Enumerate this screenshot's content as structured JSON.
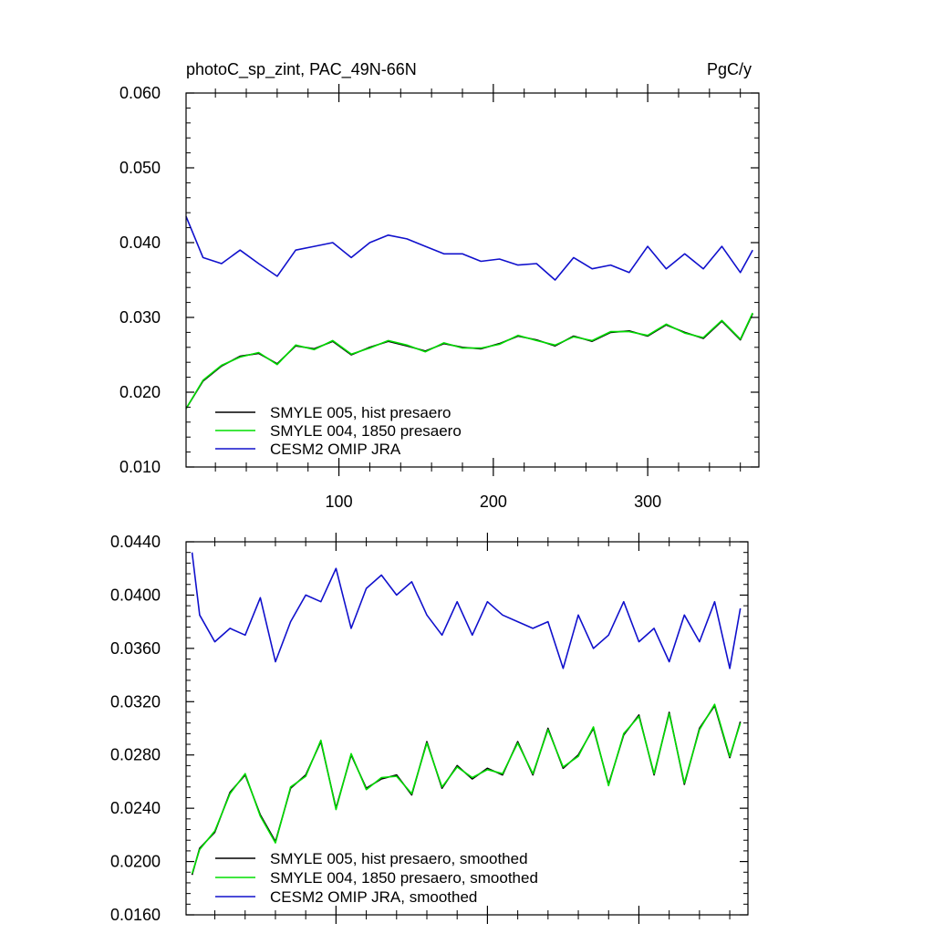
{
  "header": {
    "left_title": "photoC_sp_zint, PAC_49N-66N",
    "right_title": "PgC/y"
  },
  "colors": {
    "hist": "#000000",
    "p1850": "#00dd00",
    "omip": "#1010cc"
  },
  "chart_data": [
    {
      "type": "line",
      "title": "photoC_sp_zint, PAC_49N-66N",
      "units": "PgC/y",
      "xlim": [
        1,
        372
      ],
      "ylim": [
        0.01,
        0.06
      ],
      "x_ticks": [
        100,
        200,
        300
      ],
      "y_ticks": [
        "0.010",
        "0.020",
        "0.030",
        "0.040",
        "0.050",
        "0.060"
      ],
      "legend": {
        "position": "bottom-left",
        "entries": [
          "SMYLE 005, hist presaero",
          "SMYLE 004, 1850 presaero",
          "CESM2 OMIP JRA"
        ]
      },
      "series": [
        {
          "name": "SMYLE 005, hist presaero",
          "color": "#000000",
          "x": [
            1,
            12,
            24,
            36,
            48,
            60,
            72,
            84,
            96,
            108,
            120,
            132,
            144,
            156,
            168,
            180,
            192,
            204,
            216,
            228,
            240,
            252,
            264,
            276,
            288,
            300,
            312,
            324,
            336,
            348,
            360,
            368
          ],
          "y": [
            0.0178,
            0.0215,
            0.0235,
            0.0248,
            0.0252,
            0.0238,
            0.0262,
            0.0258,
            0.0268,
            0.025,
            0.026,
            0.0268,
            0.0262,
            0.0255,
            0.0265,
            0.026,
            0.0258,
            0.0265,
            0.0275,
            0.027,
            0.0262,
            0.0275,
            0.0268,
            0.028,
            0.0282,
            0.0275,
            0.029,
            0.028,
            0.0272,
            0.0295,
            0.027,
            0.0305
          ]
        },
        {
          "name": "SMYLE 004, 1850 presaero",
          "color": "#00dd00",
          "x": [
            1,
            12,
            24,
            36,
            48,
            60,
            72,
            84,
            96,
            108,
            120,
            132,
            144,
            156,
            168,
            180,
            192,
            204,
            216,
            228,
            240,
            252,
            264,
            276,
            288,
            300,
            312,
            324,
            336,
            348,
            360,
            368
          ],
          "y": [
            0.0178,
            0.0216,
            0.0236,
            0.0247,
            0.0253,
            0.0237,
            0.0263,
            0.0257,
            0.0269,
            0.0251,
            0.0259,
            0.0269,
            0.0263,
            0.0254,
            0.0266,
            0.0259,
            0.0259,
            0.0264,
            0.0276,
            0.0269,
            0.0263,
            0.0274,
            0.0269,
            0.0281,
            0.0281,
            0.0276,
            0.0291,
            0.0279,
            0.0273,
            0.0296,
            0.0271,
            0.0306
          ]
        },
        {
          "name": "CESM2 OMIP JRA",
          "color": "#1010cc",
          "x": [
            1,
            12,
            24,
            36,
            48,
            60,
            72,
            84,
            96,
            108,
            120,
            132,
            144,
            156,
            168,
            180,
            192,
            204,
            216,
            228,
            240,
            252,
            264,
            276,
            288,
            300,
            312,
            324,
            336,
            348,
            360,
            368
          ],
          "y": [
            0.0435,
            0.038,
            0.0372,
            0.039,
            0.0372,
            0.0355,
            0.039,
            0.0395,
            0.04,
            0.038,
            0.04,
            0.041,
            0.0405,
            0.0395,
            0.0385,
            0.0385,
            0.0375,
            0.0378,
            0.037,
            0.0372,
            0.035,
            0.038,
            0.0365,
            0.037,
            0.036,
            0.0395,
            0.0365,
            0.0385,
            0.0365,
            0.0395,
            0.036,
            0.039
          ]
        }
      ]
    },
    {
      "type": "line",
      "xlim": [
        1,
        372
      ],
      "ylim": [
        0.016,
        0.044
      ],
      "x_ticks": [
        100,
        200,
        300
      ],
      "y_ticks": [
        "0.0160",
        "0.0200",
        "0.0240",
        "0.0280",
        "0.0320",
        "0.0360",
        "0.0400",
        "0.0440"
      ],
      "legend": {
        "position": "bottom-left",
        "entries": [
          "SMYLE 005, hist presaero, smoothed",
          "SMYLE 004, 1850 presaero, smoothed",
          "CESM2 OMIP JRA, smoothed"
        ]
      },
      "series": [
        {
          "name": "SMYLE 005, hist presaero, smoothed",
          "color": "#000000",
          "x": [
            5,
            10,
            20,
            30,
            40,
            50,
            60,
            70,
            80,
            90,
            100,
            110,
            120,
            130,
            140,
            150,
            160,
            170,
            180,
            190,
            200,
            210,
            220,
            230,
            240,
            250,
            260,
            270,
            280,
            290,
            300,
            310,
            320,
            330,
            340,
            350,
            360,
            367
          ],
          "y": [
            0.019,
            0.021,
            0.0222,
            0.0252,
            0.0265,
            0.0235,
            0.0215,
            0.0255,
            0.0265,
            0.029,
            0.024,
            0.028,
            0.0255,
            0.0262,
            0.0265,
            0.025,
            0.029,
            0.0255,
            0.0272,
            0.0262,
            0.027,
            0.0265,
            0.029,
            0.0265,
            0.03,
            0.027,
            0.028,
            0.03,
            0.0258,
            0.0295,
            0.031,
            0.0265,
            0.0312,
            0.0258,
            0.03,
            0.0317,
            0.0278,
            0.0305
          ]
        },
        {
          "name": "SMYLE 004, 1850 presaero, smoothed",
          "color": "#00dd00",
          "x": [
            5,
            10,
            20,
            30,
            40,
            50,
            60,
            70,
            80,
            90,
            100,
            110,
            120,
            130,
            140,
            150,
            160,
            170,
            180,
            190,
            200,
            210,
            220,
            230,
            240,
            250,
            260,
            270,
            280,
            290,
            300,
            310,
            320,
            330,
            340,
            350,
            360,
            367
          ],
          "y": [
            0.0191,
            0.0209,
            0.0223,
            0.0251,
            0.0266,
            0.0234,
            0.0214,
            0.0256,
            0.0264,
            0.0291,
            0.0239,
            0.0281,
            0.0254,
            0.0263,
            0.0264,
            0.0251,
            0.0289,
            0.0256,
            0.0271,
            0.0263,
            0.0269,
            0.0266,
            0.0289,
            0.0266,
            0.0299,
            0.0271,
            0.0279,
            0.0301,
            0.0257,
            0.0296,
            0.0309,
            0.0266,
            0.0311,
            0.0259,
            0.0299,
            0.0318,
            0.0279,
            0.0304
          ]
        },
        {
          "name": "CESM2 OMIP JRA, smoothed",
          "color": "#1010cc",
          "x": [
            5,
            10,
            20,
            30,
            40,
            50,
            60,
            70,
            80,
            90,
            100,
            110,
            120,
            130,
            140,
            150,
            160,
            170,
            180,
            190,
            200,
            210,
            220,
            230,
            240,
            250,
            260,
            270,
            280,
            290,
            300,
            310,
            320,
            330,
            340,
            350,
            360,
            367
          ],
          "y": [
            0.0432,
            0.0385,
            0.0365,
            0.0375,
            0.037,
            0.0398,
            0.035,
            0.038,
            0.04,
            0.0395,
            0.042,
            0.0375,
            0.0405,
            0.0415,
            0.04,
            0.041,
            0.0385,
            0.037,
            0.0395,
            0.037,
            0.0395,
            0.0385,
            0.038,
            0.0375,
            0.038,
            0.0345,
            0.0385,
            0.036,
            0.037,
            0.0395,
            0.0365,
            0.0375,
            0.035,
            0.0385,
            0.0365,
            0.0395,
            0.0345,
            0.039
          ]
        }
      ]
    }
  ]
}
